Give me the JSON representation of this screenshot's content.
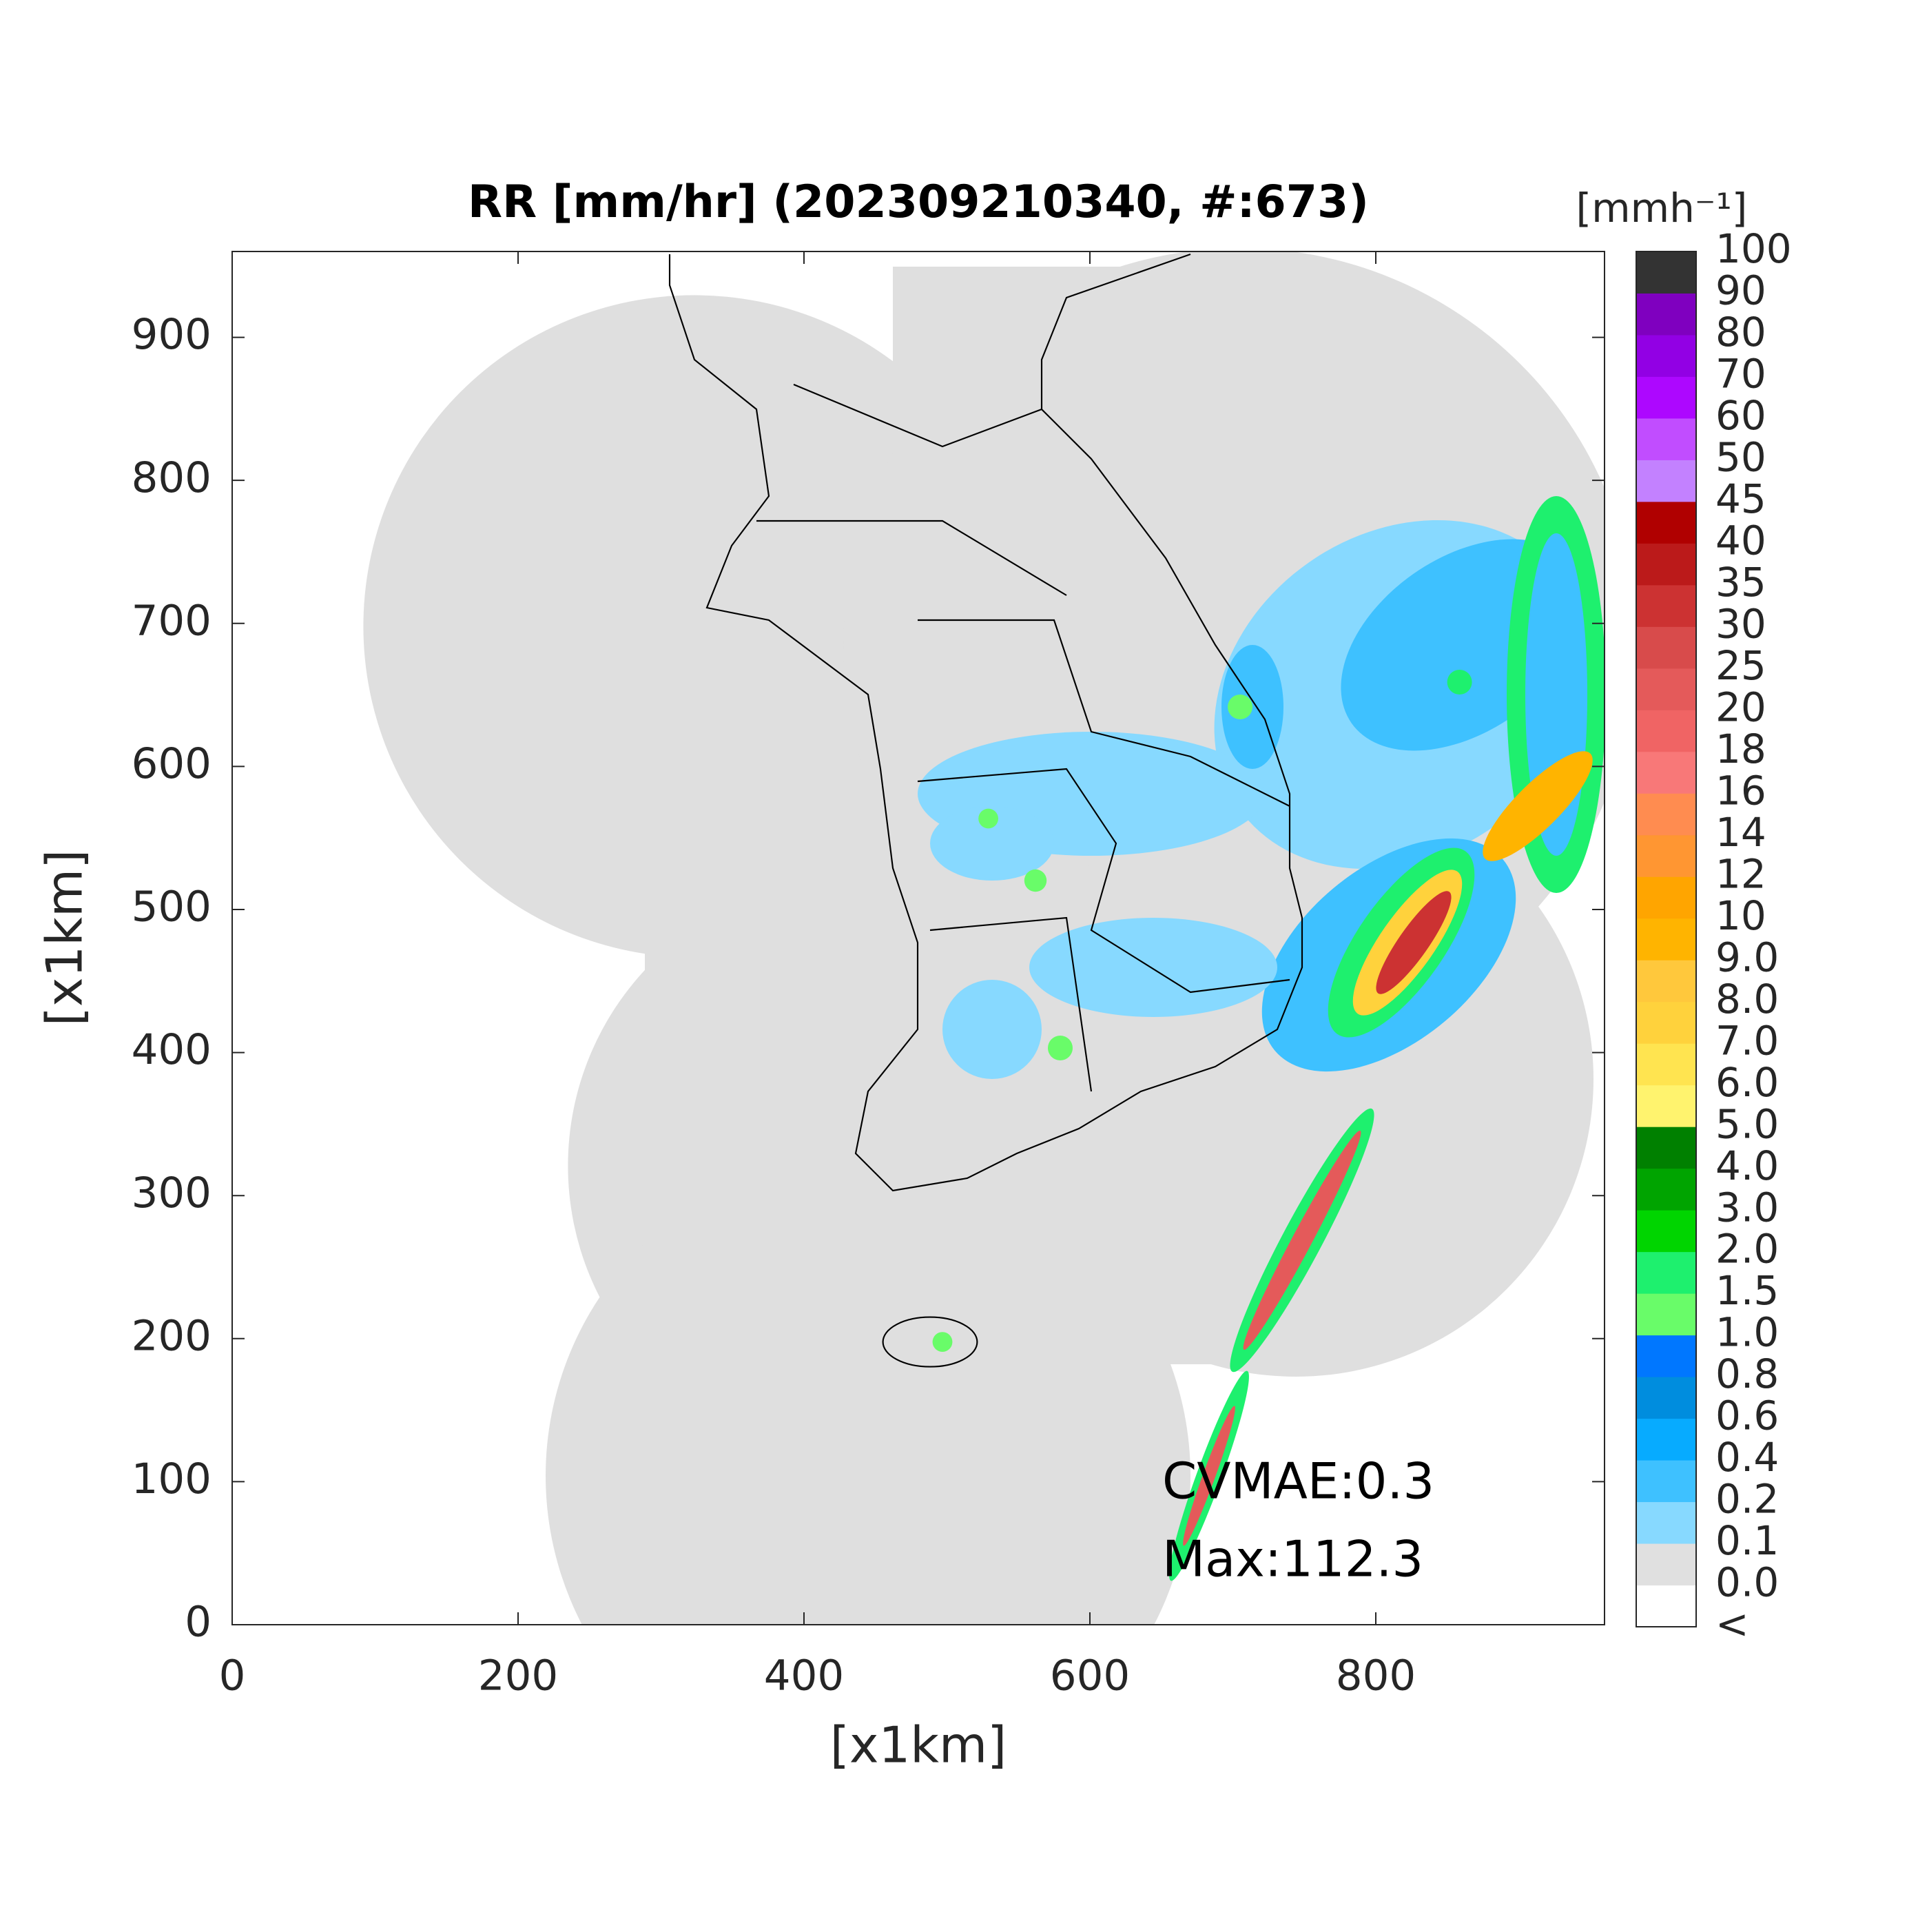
{
  "title": "RR [mm/hr] (202309210340, #:673)",
  "axes": {
    "xlabel": "[x1km]",
    "ylabel": "[x1km]",
    "xlim": [
      0,
      960
    ],
    "ylim": [
      0,
      960
    ],
    "xticks": [
      0,
      200,
      400,
      600,
      800
    ],
    "yticks": [
      0,
      100,
      200,
      300,
      400,
      500,
      600,
      700,
      800,
      900
    ]
  },
  "colorbar": {
    "label": "[mmh⁻¹]",
    "ticks": [
      "<",
      "0.0",
      "0.1",
      "0.2",
      "0.4",
      "0.6",
      "0.8",
      "1.0",
      "1.5",
      "2.0",
      "3.0",
      "4.0",
      "5.0",
      "6.0",
      "7.0",
      "8.0",
      "9.0",
      "10",
      "12",
      "14",
      "16",
      "18",
      "20",
      "25",
      "30",
      "35",
      "40",
      "45",
      "50",
      "60",
      "70",
      "80",
      "90",
      "100"
    ],
    "colors": [
      "#ffffff",
      "#e0e0e0",
      "#87d9ff",
      "#3ec1ff",
      "#07abff",
      "#008dde",
      "#0077ff",
      "#69fc69",
      "#1ef06e",
      "#00d500",
      "#00a400",
      "#008000",
      "#fff36e",
      "#ffe450",
      "#ffd23c",
      "#ffc83c",
      "#ffb400",
      "#ffa500",
      "#ff9632",
      "#ff8c50",
      "#f87878",
      "#f06464",
      "#e45a5a",
      "#d84b4b",
      "#cc3232",
      "#bb1a1a",
      "#b00000",
      "#c381ff",
      "#c14dff",
      "#ad07ff",
      "#9200e4",
      "#7f00bf",
      "#333333"
    ]
  },
  "annotations": [
    "CVMAE:0.3",
    "Max:112.3"
  ]
}
